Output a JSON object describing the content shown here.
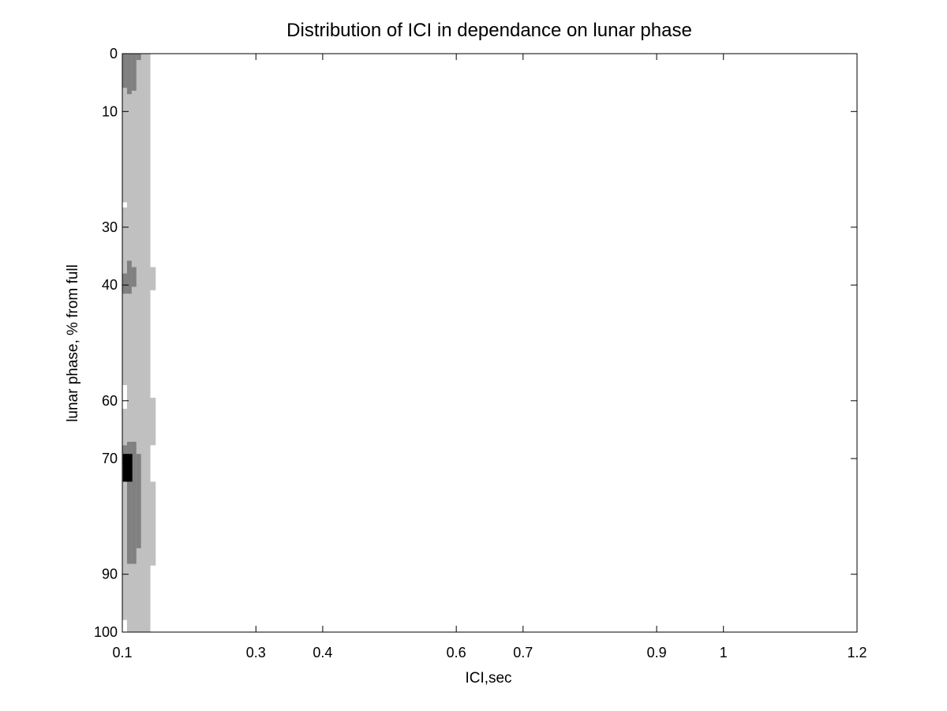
{
  "chart_data": {
    "type": "heatmap",
    "title": "Distribution of ICI in dependance on lunar phase",
    "xlabel": "ICI,sec",
    "ylabel": "lunar phase, % from full",
    "xlim": [
      0.1,
      1.2
    ],
    "ylim": [
      0,
      100
    ],
    "y_reversed": true,
    "x_ticks": [
      0.1,
      0.3,
      0.4,
      0.6,
      0.7,
      0.9,
      1,
      1.2
    ],
    "x_tick_labels": [
      "0.1",
      "0.3",
      "0.4",
      "0.6",
      "0.7",
      "0.9",
      "1",
      "1.2"
    ],
    "y_ticks": [
      0,
      10,
      30,
      40,
      60,
      70,
      90,
      100
    ],
    "y_tick_labels": [
      "0",
      "10",
      "30",
      "40",
      "60",
      "70",
      "90",
      "100"
    ],
    "grid": false,
    "colormap": "gray (light = low count, black = high count)",
    "cells": [
      {
        "x0": 0.1,
        "x1": 0.107,
        "y0": 0.0,
        "y1": 25.7,
        "level": 1
      },
      {
        "x0": 0.1,
        "x1": 0.107,
        "y0": 26.6,
        "y1": 57.3,
        "level": 1
      },
      {
        "x0": 0.1,
        "x1": 0.107,
        "y0": 61.4,
        "y1": 97.9,
        "level": 1
      },
      {
        "x0": 0.107,
        "x1": 0.142,
        "y0": 0.0,
        "y1": 100.0,
        "level": 1
      },
      {
        "x0": 0.142,
        "x1": 0.15,
        "y0": 36.9,
        "y1": 40.9,
        "level": 1
      },
      {
        "x0": 0.142,
        "x1": 0.15,
        "y0": 59.5,
        "y1": 67.7,
        "level": 1
      },
      {
        "x0": 0.142,
        "x1": 0.15,
        "y0": 74.0,
        "y1": 88.5,
        "level": 1
      },
      {
        "x0": 0.1,
        "x1": 0.107,
        "y0": 0.0,
        "y1": 5.9,
        "level": 2
      },
      {
        "x0": 0.107,
        "x1": 0.114,
        "y0": 0.0,
        "y1": 7.0,
        "level": 2
      },
      {
        "x0": 0.114,
        "x1": 0.121,
        "y0": 0.0,
        "y1": 6.4,
        "level": 2
      },
      {
        "x0": 0.121,
        "x1": 0.128,
        "y0": 0.0,
        "y1": 1.1,
        "level": 2
      },
      {
        "x0": 0.1,
        "x1": 0.107,
        "y0": 38.0,
        "y1": 41.5,
        "level": 2
      },
      {
        "x0": 0.107,
        "x1": 0.114,
        "y0": 35.8,
        "y1": 41.5,
        "level": 2
      },
      {
        "x0": 0.114,
        "x1": 0.121,
        "y0": 36.9,
        "y1": 40.3,
        "level": 2
      },
      {
        "x0": 0.1,
        "x1": 0.107,
        "y0": 67.7,
        "y1": 74.0,
        "level": 2
      },
      {
        "x0": 0.107,
        "x1": 0.114,
        "y0": 67.1,
        "y1": 88.2,
        "level": 2
      },
      {
        "x0": 0.114,
        "x1": 0.121,
        "y0": 67.1,
        "y1": 88.2,
        "level": 2
      },
      {
        "x0": 0.121,
        "x1": 0.128,
        "y0": 69.2,
        "y1": 85.5,
        "level": 2
      },
      {
        "x0": 0.101,
        "x1": 0.115,
        "y0": 69.2,
        "y1": 74.0,
        "level": 3
      }
    ]
  }
}
